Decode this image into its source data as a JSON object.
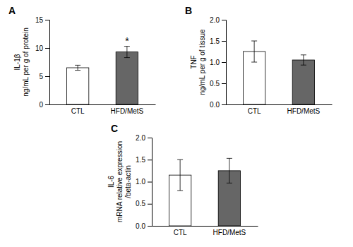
{
  "chart_data": [
    {
      "type": "bar",
      "title": "A",
      "categories": [
        "CTL",
        "HFD/MetS"
      ],
      "values": [
        6.5,
        9.3
      ],
      "errors": [
        0.45,
        1.0
      ],
      "colors": [
        "white",
        "#666666"
      ],
      "ylabel": "IL-1β\nng/mL per g of protein",
      "ylim": [
        0,
        15
      ],
      "yticks": [
        0,
        5,
        10,
        15
      ],
      "grid": false,
      "annotations": [
        {
          "text": "*",
          "category": "HFD/MetS"
        }
      ]
    },
    {
      "type": "bar",
      "title": "B",
      "categories": [
        "CTL",
        "HFD/MetS"
      ],
      "values": [
        1.25,
        1.05
      ],
      "errors": [
        0.25,
        0.12
      ],
      "colors": [
        "white",
        "#666666"
      ],
      "ylabel": "TNF\nng/mL per g of tissue",
      "ylim": [
        0.0,
        2.0
      ],
      "yticks": [
        {
          "value": 0.0,
          "label": "0.0"
        },
        0.5,
        {
          "value": 1.0,
          "label": "1.0"
        },
        1.5,
        {
          "value": 2.0,
          "label": "2.0"
        }
      ],
      "grid": false
    },
    {
      "type": "bar",
      "title": "C",
      "categories": [
        "CTL",
        "HFD/MetS"
      ],
      "values": [
        1.15,
        1.25
      ],
      "errors": [
        0.35,
        0.28
      ],
      "colors": [
        "white",
        "#666666"
      ],
      "ylabel": "IL-6\nmRNA relative expression\n/beta-actin",
      "ylim": [
        0.0,
        2.0
      ],
      "yticks": [
        {
          "value": 0.0,
          "label": "0.0"
        },
        0.5,
        {
          "value": 1.0,
          "label": "1.0"
        },
        1.5,
        {
          "value": 2.0,
          "label": "2.0"
        }
      ],
      "grid": false
    }
  ]
}
